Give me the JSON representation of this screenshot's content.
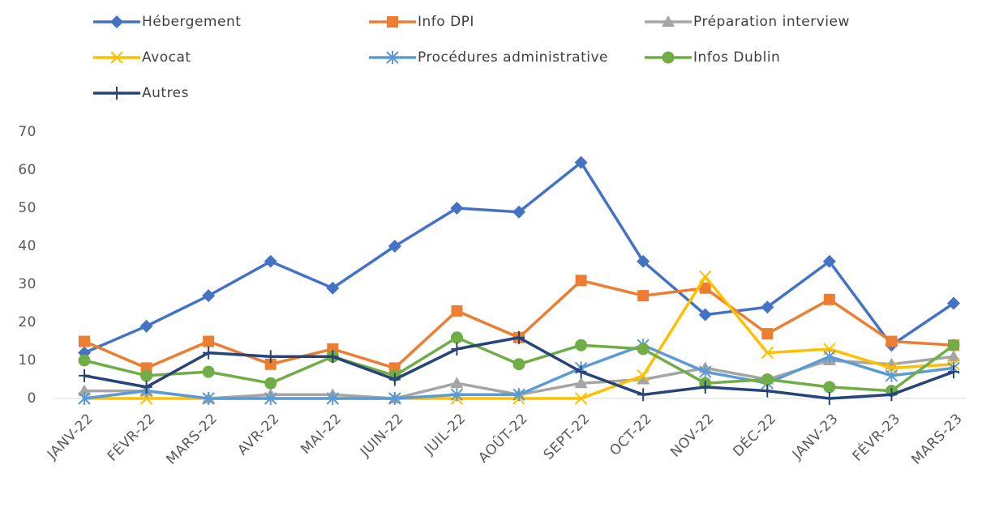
{
  "chart_data": {
    "type": "line",
    "categories": [
      "JANV-22",
      "FÉVR-22",
      "MARS-22",
      "AVR-22",
      "MAI-22",
      "JUIN-22",
      "JUIL-22",
      "AOÛT-22",
      "SEPT-22",
      "OCT-22",
      "NOV-22",
      "DÉC-22",
      "JANV-23",
      "FÉVR-23",
      "MARS-23"
    ],
    "series": [
      {
        "name": "Hébergement",
        "color": "#4472c4",
        "marker": "diamond",
        "values": [
          12,
          19,
          27,
          36,
          29,
          40,
          50,
          49,
          62,
          36,
          22,
          24,
          36,
          14,
          25
        ]
      },
      {
        "name": "Info DPI",
        "color": "#ed7d31",
        "marker": "square",
        "values": [
          15,
          8,
          15,
          9,
          13,
          8,
          23,
          16,
          31,
          27,
          29,
          17,
          26,
          15,
          14
        ]
      },
      {
        "name": "Préparation interview",
        "color": "#a5a5a5",
        "marker": "triangle",
        "values": [
          2,
          2,
          0,
          1,
          1,
          0,
          4,
          1,
          4,
          5,
          8,
          5,
          10,
          9,
          11
        ]
      },
      {
        "name": "Avocat",
        "color": "#ffc000",
        "marker": "x",
        "values": [
          0,
          0,
          0,
          0,
          0,
          0,
          0,
          0,
          0,
          6,
          32,
          12,
          13,
          8,
          9
        ]
      },
      {
        "name": "Procédures administrative",
        "color": "#5b9bd5",
        "marker": "star",
        "values": [
          0,
          2,
          0,
          0,
          0,
          0,
          1,
          1,
          8,
          14,
          7,
          4,
          11,
          6,
          8
        ]
      },
      {
        "name": "Infos Dublin",
        "color": "#70ad47",
        "marker": "circle",
        "values": [
          10,
          6,
          7,
          4,
          11,
          6,
          16,
          9,
          14,
          13,
          4,
          5,
          3,
          2,
          14
        ]
      },
      {
        "name": "Autres",
        "color": "#264478",
        "marker": "plus",
        "values": [
          6,
          3,
          12,
          11,
          11,
          5,
          13,
          16,
          7,
          1,
          3,
          2,
          0,
          1,
          7
        ]
      }
    ],
    "ylim": [
      0,
      70
    ],
    "yticks": [
      0,
      10,
      20,
      30,
      40,
      50,
      60,
      70
    ],
    "grid": false,
    "legend": "top"
  }
}
